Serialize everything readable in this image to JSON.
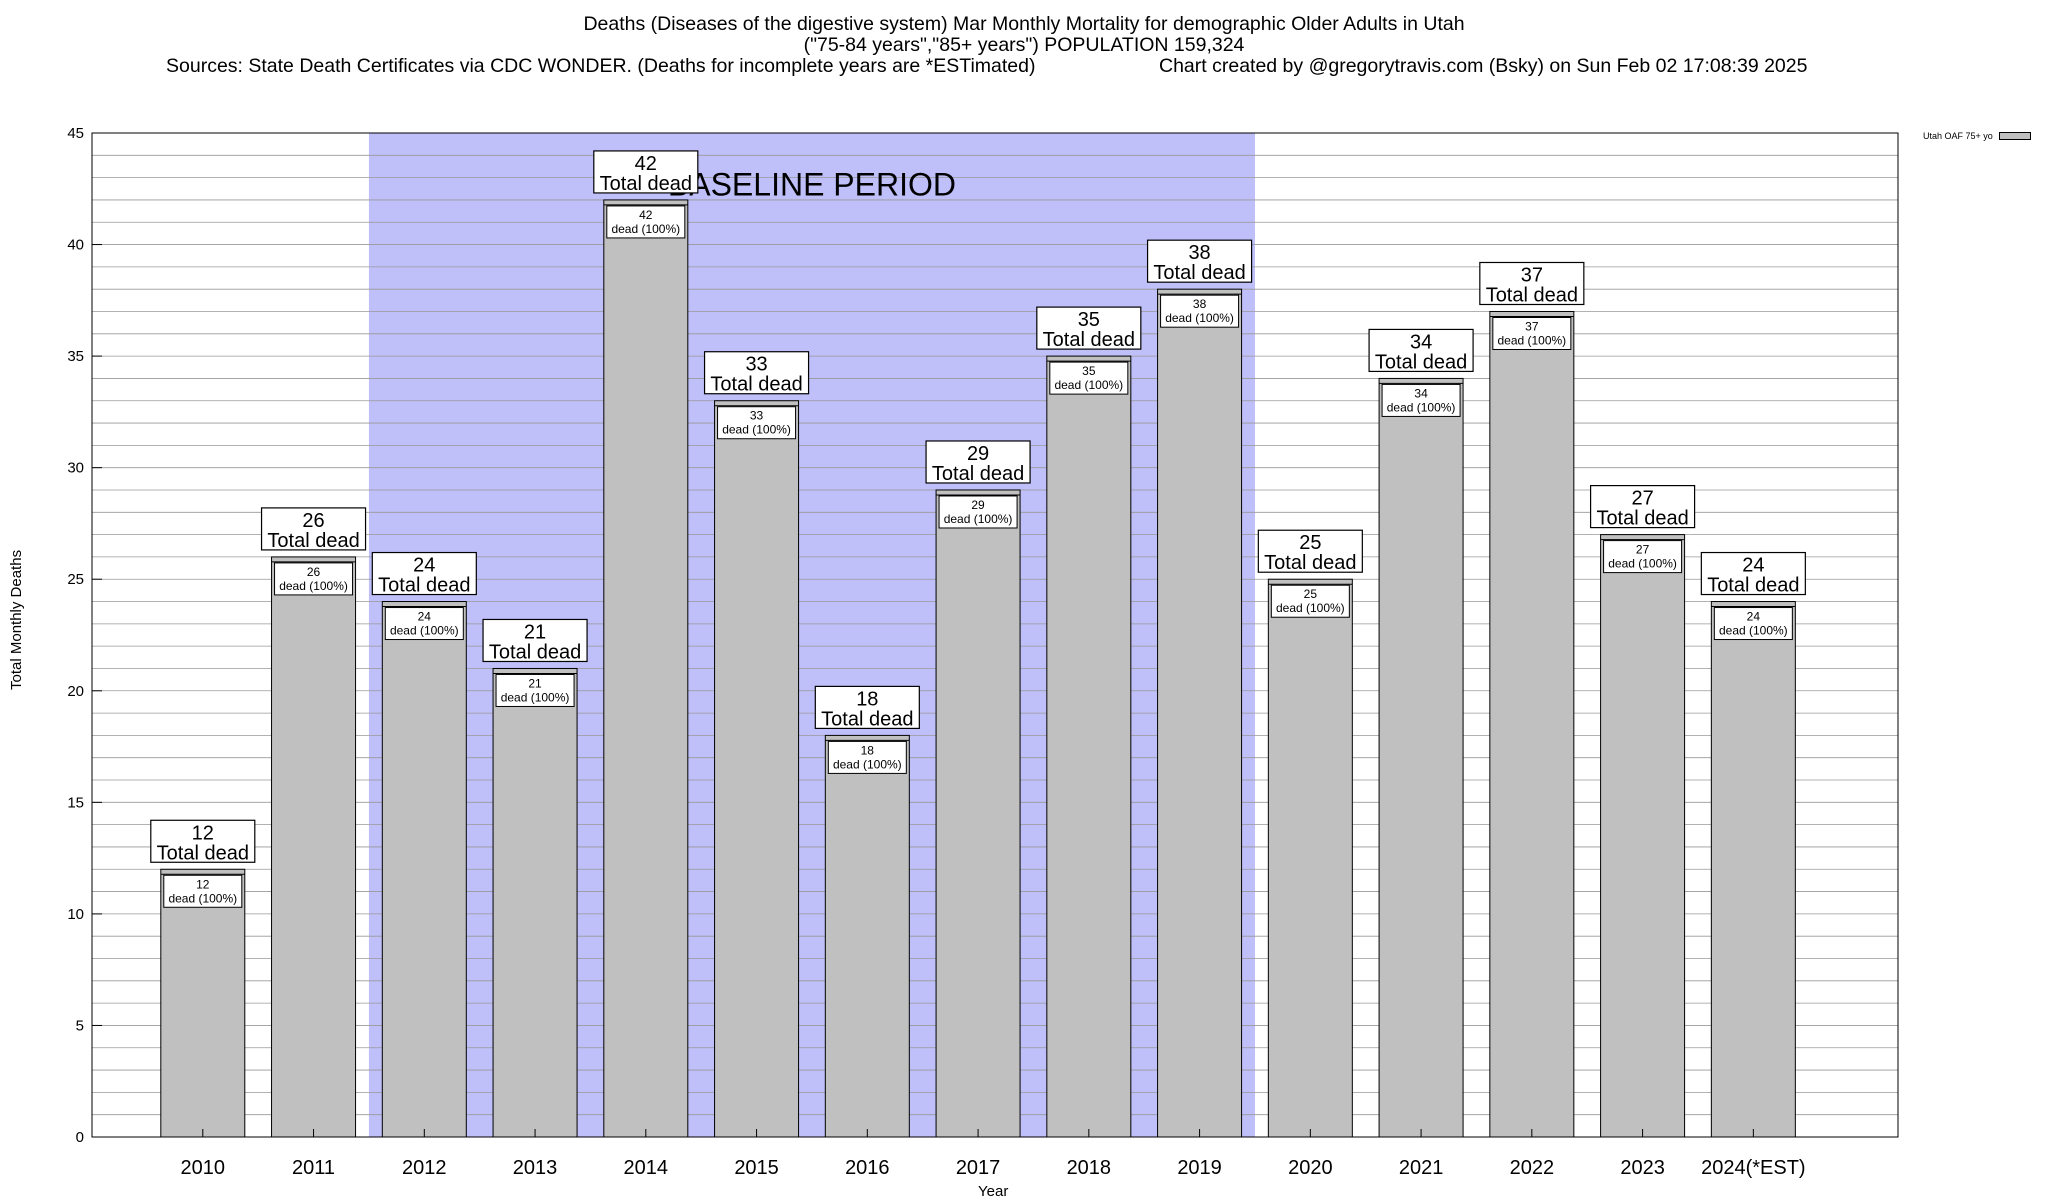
{
  "chart_data": {
    "type": "bar",
    "title": "Deaths (Diseases of the digestive system) Mar Monthly Mortality for demographic Older Adults in Utah",
    "subtitle": "(\"75-84 years\",\"85+ years\") POPULATION 159,324",
    "sources": "Sources: State Death Certificates via CDC WONDER. (Deaths for incomplete years are *ESTimated)",
    "credit": "Chart created by @gregorytravis.com (Bsky) on Sun Feb 02 17:08:39 2025",
    "xlabel": "Year",
    "ylabel": "Total Monthly Deaths",
    "ylim": [
      0,
      45
    ],
    "y_ticks": [
      0,
      5,
      10,
      15,
      20,
      25,
      30,
      35,
      40,
      45
    ],
    "grid": true,
    "legend_position": "top-right",
    "categories": [
      "2010",
      "2011",
      "2012",
      "2013",
      "2014",
      "2015",
      "2016",
      "2017",
      "2018",
      "2019",
      "2020",
      "2021",
      "2022",
      "2023",
      "2024(*EST)"
    ],
    "series": [
      {
        "name": "Utah OAF 75+ yo",
        "color": "#c0c0c0",
        "values": [
          12,
          26,
          24,
          21,
          42,
          33,
          18,
          29,
          35,
          38,
          25,
          34,
          37,
          27,
          24
        ]
      }
    ],
    "top_label_text": "Total dead",
    "inner_label_text": "dead (100%)",
    "baseline": {
      "label": "BASELINE PERIOD",
      "start": "2012",
      "end": "2019",
      "color": "#bfbff9"
    }
  }
}
